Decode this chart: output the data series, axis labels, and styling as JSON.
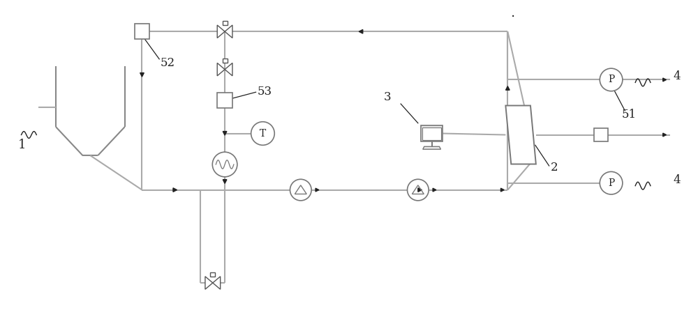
{
  "figsize": [
    10.0,
    4.78
  ],
  "dpi": 100,
  "bg_color": "#ffffff",
  "line_color": "#aaaaaa",
  "line_width": 1.5,
  "arrow_color": "#222222",
  "text_color": "#222222",
  "valve_edge": "#555555",
  "comp_edge": "#777777",
  "xlim": [
    0,
    100
  ],
  "ylim": [
    0,
    47.8
  ]
}
